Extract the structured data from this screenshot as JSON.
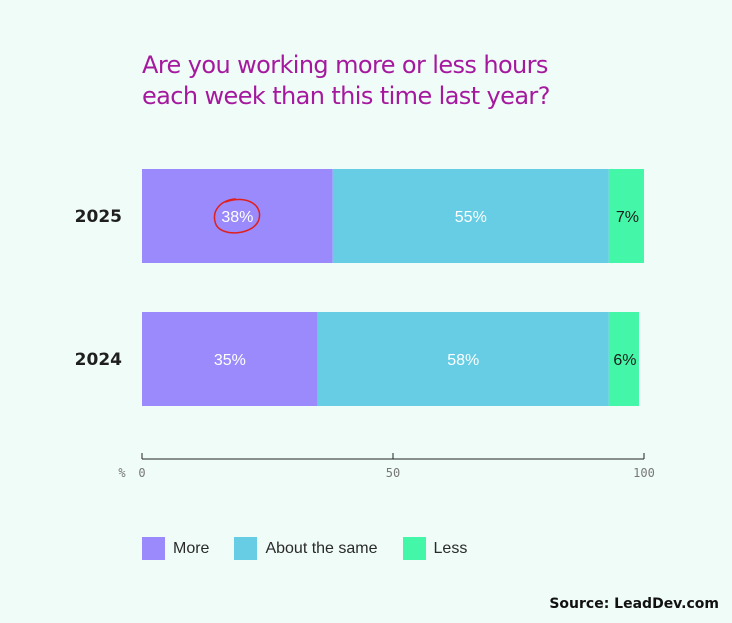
{
  "chart_data": {
    "type": "bar",
    "orientation": "horizontal",
    "stacked": true,
    "title": "Are you working more or less hours each week than this time last year?",
    "title_lines": [
      "Are you working more or less hours",
      "each week than this time last year?"
    ],
    "categories": [
      "2025",
      "2024"
    ],
    "series": [
      {
        "name": "More",
        "values": [
          38,
          35
        ],
        "labels": [
          "38%",
          "35%"
        ],
        "color": "#9b8afb",
        "label_color": "#ffffff"
      },
      {
        "name": "About the same",
        "values": [
          55,
          58
        ],
        "labels": [
          "55%",
          "58%"
        ],
        "color": "#66cde4",
        "label_color": "#ffffff"
      },
      {
        "name": "Less",
        "values": [
          7,
          6
        ],
        "labels": [
          "7%",
          "6%"
        ],
        "color": "#44f7a8",
        "label_color": "#1a1a1a"
      }
    ],
    "xlabel": "%",
    "xlim": [
      0,
      100
    ],
    "xticks": [
      0,
      50,
      100
    ],
    "grid": false,
    "legend_position": "bottom-left",
    "annotation": {
      "type": "hand-drawn circle",
      "target": "2025 More",
      "color": "#e0201c"
    }
  },
  "source": "Source: LeadDev.com"
}
